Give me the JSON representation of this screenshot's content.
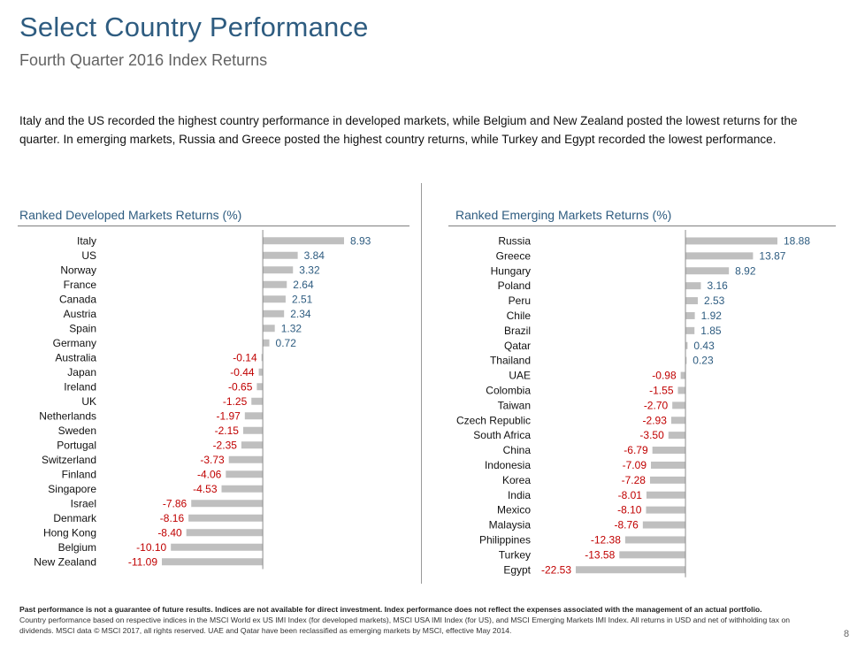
{
  "title": "Select Country Performance",
  "subtitle": "Fourth Quarter 2016 Index Returns",
  "intro": "Italy and the US recorded the highest country performance in developed markets, while Belgium and New Zealand posted the lowest returns for the quarter. In emerging markets, Russia and Greece posted the highest country returns, while Turkey and Egypt recorded the lowest performance.",
  "colors": {
    "title": "#2e5c80",
    "bar": "#bfbfbf",
    "positive_label": "#2e5c80",
    "negative_label": "#c00000"
  },
  "chart_data": [
    {
      "type": "bar",
      "orientation": "horizontal",
      "title": "Ranked Developed Markets Returns (%)",
      "categories": [
        "Italy",
        "US",
        "Norway",
        "France",
        "Canada",
        "Austria",
        "Spain",
        "Germany",
        "Australia",
        "Japan",
        "Ireland",
        "UK",
        "Netherlands",
        "Sweden",
        "Portugal",
        "Switzerland",
        "Finland",
        "Singapore",
        "Israel",
        "Denmark",
        "Hong Kong",
        "Belgium",
        "New Zealand"
      ],
      "values": [
        8.93,
        3.84,
        3.32,
        2.64,
        2.51,
        2.34,
        1.32,
        0.72,
        -0.14,
        -0.44,
        -0.65,
        -1.25,
        -1.97,
        -2.15,
        -2.35,
        -3.73,
        -4.06,
        -4.53,
        -7.86,
        -8.16,
        -8.4,
        -10.1,
        -11.09
      ],
      "value_labels": [
        "8.93",
        "3.84",
        "3.32",
        "2.64",
        "2.51",
        "2.34",
        "1.32",
        "0.72",
        "-0.14",
        "-0.44",
        "-0.65",
        "-1.25",
        "-1.97",
        "-2.15",
        "-2.35",
        "-3.73",
        "-4.06",
        "-4.53",
        "-7.86",
        "-8.16",
        "-8.40",
        "-10.10",
        "-11.09"
      ],
      "xlim": [
        -11.09,
        8.93
      ]
    },
    {
      "type": "bar",
      "orientation": "horizontal",
      "title": "Ranked Emerging Markets Returns (%)",
      "categories": [
        "Russia",
        "Greece",
        "Hungary",
        "Poland",
        "Peru",
        "Chile",
        "Brazil",
        "Qatar",
        "Thailand",
        "UAE",
        "Colombia",
        "Taiwan",
        "Czech Republic",
        "South Africa",
        "China",
        "Indonesia",
        "Korea",
        "India",
        "Mexico",
        "Malaysia",
        "Philippines",
        "Turkey",
        "Egypt"
      ],
      "values": [
        18.88,
        13.87,
        8.92,
        3.16,
        2.53,
        1.92,
        1.85,
        0.43,
        0.23,
        -0.98,
        -1.55,
        -2.7,
        -2.93,
        -3.5,
        -6.79,
        -7.09,
        -7.28,
        -8.01,
        -8.1,
        -8.76,
        -12.38,
        -13.58,
        -22.53
      ],
      "value_labels": [
        "18.88",
        "13.87",
        "8.92",
        "3.16",
        "2.53",
        "1.92",
        "1.85",
        "0.43",
        "0.23",
        "-0.98",
        "-1.55",
        "-2.70",
        "-2.93",
        "-3.50",
        "-6.79",
        "-7.09",
        "-7.28",
        "-8.01",
        "-8.10",
        "-8.76",
        "-12.38",
        "-13.58",
        "-22.53"
      ],
      "xlim": [
        -22.53,
        18.88
      ]
    }
  ],
  "footnote": {
    "bold": "Past performance is not a guarantee of future results. Indices are not available for direct investment. Index performance does not reflect the expenses associated with the management of an actual portfolio.",
    "text": "Country performance based on respective indices in the MSCI World ex US IMI Index (for developed markets), MSCI USA IMI Index (for US), and MSCI Emerging Markets IMI Index. All returns in USD and net of withholding tax on dividends. MSCI data © MSCI 2017, all rights reserved. UAE and Qatar have been reclassified as emerging markets by MSCI, effective May 2014."
  },
  "page_number": "8"
}
